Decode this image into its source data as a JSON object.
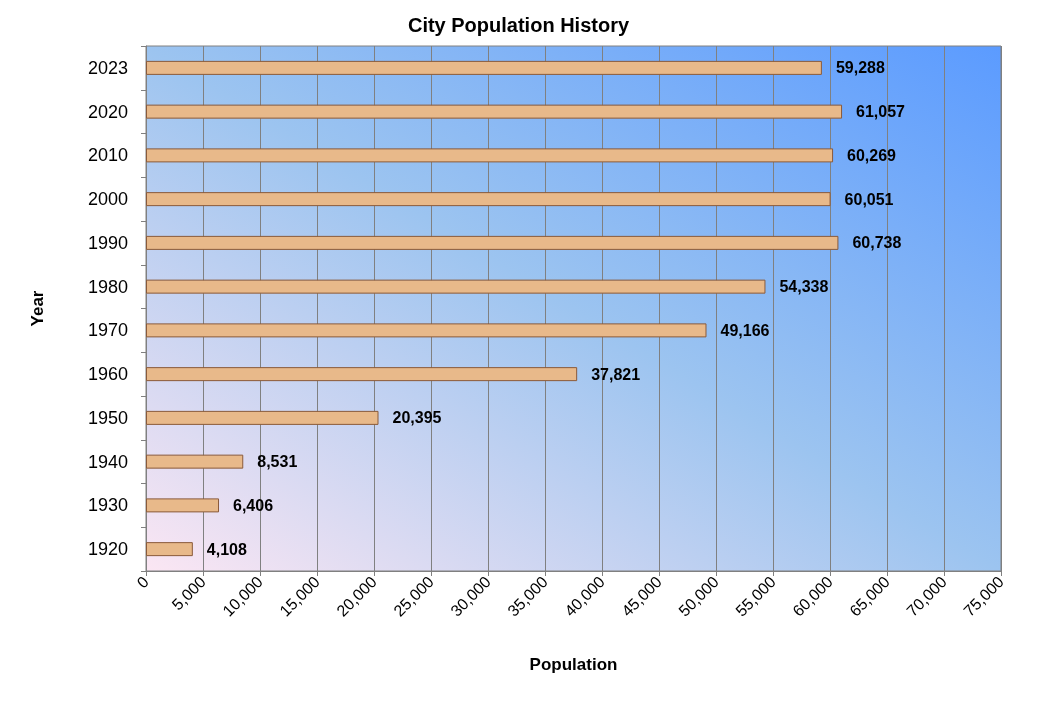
{
  "chart_data": {
    "type": "bar",
    "orientation": "horizontal",
    "title": "City Population History",
    "xlabel": "Population",
    "ylabel": "Year",
    "categories": [
      "2023",
      "2020",
      "2010",
      "2000",
      "1990",
      "1980",
      "1970",
      "1960",
      "1950",
      "1940",
      "1930",
      "1920"
    ],
    "values": [
      59288,
      61057,
      60269,
      60051,
      60738,
      54338,
      49166,
      37821,
      20395,
      8531,
      6406,
      4108
    ],
    "value_labels": [
      "59,288",
      "61,057",
      "60,269",
      "60,051",
      "60,738",
      "54,338",
      "49,166",
      "37,821",
      "20,395",
      "8,531",
      "6,406",
      "4,108"
    ],
    "color": "#e8b98a",
    "xlim": [
      0,
      75000
    ],
    "xticks": [
      0,
      {
        "value": 5000,
        "label": "5,000"
      },
      {
        "value": 10000,
        "label": "10,000"
      },
      {
        "value": 15000,
        "label": "15,000"
      },
      {
        "value": 20000,
        "label": "20,000"
      },
      {
        "value": 25000,
        "label": "25,000"
      },
      {
        "value": 30000,
        "label": "30,000"
      },
      {
        "value": 35000,
        "label": "35,000"
      },
      {
        "value": 40000,
        "label": "40,000"
      },
      {
        "value": 45000,
        "label": "45,000"
      },
      {
        "value": 50000,
        "label": "50,000"
      },
      {
        "value": 55000,
        "label": "55,000"
      },
      {
        "value": 60000,
        "label": "60,000"
      },
      {
        "value": 65000,
        "label": "65,000"
      },
      {
        "value": 70000,
        "label": "70,000"
      },
      {
        "value": 75000,
        "label": "75,000"
      }
    ],
    "grid": "x"
  }
}
